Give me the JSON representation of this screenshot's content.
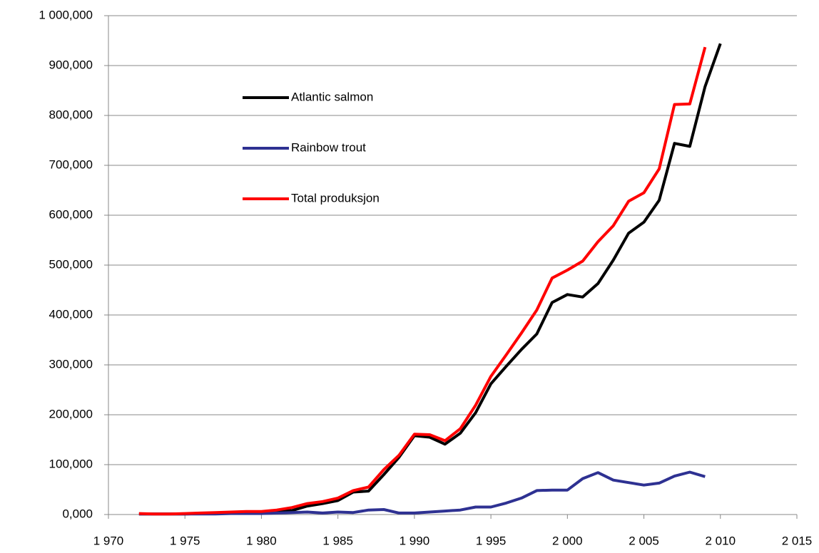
{
  "chart_data": {
    "type": "line",
    "x": [
      1972,
      1973,
      1974,
      1975,
      1976,
      1977,
      1978,
      1979,
      1980,
      1981,
      1982,
      1983,
      1984,
      1985,
      1986,
      1987,
      1988,
      1989,
      1990,
      1991,
      1992,
      1993,
      1994,
      1995,
      1996,
      1997,
      1998,
      1999,
      2000,
      2001,
      2002,
      2003,
      2004,
      2005,
      2006,
      2007,
      2008,
      2009,
      2010
    ],
    "series": [
      {
        "name": "Atlantic salmon",
        "color": "#000000",
        "values": [
          1000,
          1000,
          1000,
          1000,
          2000,
          3000,
          4000,
          4000,
          4000,
          6000,
          8000,
          17000,
          22000,
          28000,
          45000,
          47000,
          80000,
          115000,
          158000,
          155000,
          141000,
          163000,
          204000,
          262000,
          297000,
          331000,
          362000,
          425000,
          441000,
          436000,
          463000,
          510000,
          564000,
          586000,
          630000,
          744000,
          738000,
          858000,
          944000
        ]
      },
      {
        "name": "Rainbow trout",
        "color": "#2e3192",
        "values": [
          1000,
          1000,
          1000,
          1000,
          1000,
          1000,
          2000,
          2000,
          2000,
          3000,
          4000,
          5000,
          3000,
          5000,
          4000,
          9000,
          10000,
          3000,
          3000,
          5000,
          7000,
          9000,
          15000,
          15000,
          23000,
          33000,
          48000,
          49000,
          49000,
          72000,
          84000,
          69000,
          64000,
          59000,
          63000,
          77000,
          85000,
          76000,
          null
        ]
      },
      {
        "name": "Total produksjon",
        "color": "#ff0000",
        "values": [
          2000,
          1000,
          1000,
          2000,
          3000,
          4000,
          5000,
          6000,
          6000,
          9000,
          14000,
          22000,
          26000,
          33000,
          48000,
          55000,
          90000,
          119000,
          161000,
          160000,
          148000,
          172000,
          219000,
          277000,
          320000,
          364000,
          410000,
          474000,
          490000,
          508000,
          547000,
          579000,
          628000,
          645000,
          693000,
          822000,
          823000,
          937000,
          null
        ]
      }
    ],
    "xlim": [
      1970,
      2015
    ],
    "xticks": [
      {
        "value": 1970,
        "label": "1 970"
      },
      {
        "value": 1975,
        "label": "1 975"
      },
      {
        "value": 1980,
        "label": "1 980"
      },
      {
        "value": 1985,
        "label": "1 985"
      },
      {
        "value": 1990,
        "label": "1 990"
      },
      {
        "value": 1995,
        "label": "1 995"
      },
      {
        "value": 2000,
        "label": "2 000"
      },
      {
        "value": 2005,
        "label": "2 005"
      },
      {
        "value": 2010,
        "label": "2 010"
      },
      {
        "value": 2015,
        "label": "2 015"
      }
    ],
    "ylim": [
      0,
      1000000
    ],
    "yticks": [
      {
        "value": 0,
        "label": "0,000"
      },
      {
        "value": 100000,
        "label": "100,000"
      },
      {
        "value": 200000,
        "label": "200,000"
      },
      {
        "value": 300000,
        "label": "300,000"
      },
      {
        "value": 400000,
        "label": "400,000"
      },
      {
        "value": 500000,
        "label": "500,000"
      },
      {
        "value": 600000,
        "label": "600,000"
      },
      {
        "value": 700000,
        "label": "700,000"
      },
      {
        "value": 800000,
        "label": "800,000"
      },
      {
        "value": 900000,
        "label": "900,000"
      },
      {
        "value": 1000000,
        "label": "1 000,000"
      }
    ],
    "grid": true
  }
}
